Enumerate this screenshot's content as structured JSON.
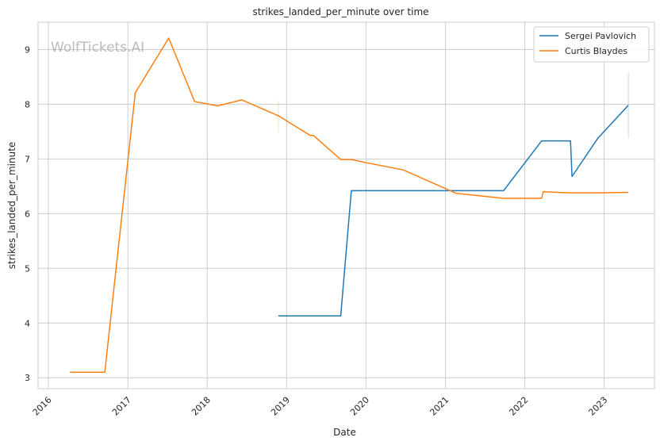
{
  "chart_data": {
    "type": "line",
    "title": "strikes_landed_per_minute over time",
    "xlabel": "Date",
    "ylabel": "strikes_landed_per_minute",
    "watermark": "WolfTickets.AI",
    "xlim": [
      "2015-11-15",
      "2023-08-20"
    ],
    "ylim": [
      2.8,
      9.5
    ],
    "x_ticks": [
      "2016-01-01",
      "2017-01-01",
      "2018-01-01",
      "2019-01-01",
      "2020-01-01",
      "2021-01-01",
      "2022-01-01",
      "2023-01-01"
    ],
    "x_tick_labels": [
      "2016",
      "2017",
      "2018",
      "2019",
      "2020",
      "2021",
      "2022",
      "2023"
    ],
    "y_ticks": [
      3,
      4,
      5,
      6,
      7,
      8,
      9
    ],
    "grid": true,
    "legend_position": "top-right",
    "series": [
      {
        "name": "Sergei Pavlovich",
        "color": "#1f77b4",
        "points": [
          [
            "2018-11-24",
            4.13
          ],
          [
            "2019-09-07",
            4.13
          ],
          [
            "2019-10-26",
            6.42
          ],
          [
            "2021-09-25",
            6.42
          ],
          [
            "2022-03-19",
            7.33
          ],
          [
            "2022-07-30",
            7.33
          ],
          [
            "2022-08-06",
            6.68
          ],
          [
            "2022-12-03",
            7.38
          ],
          [
            "2023-04-22",
            7.98
          ]
        ]
      },
      {
        "name": "Curtis Blaydes",
        "color": "#ff7f0e",
        "points": [
          [
            "2016-04-10",
            3.1
          ],
          [
            "2016-09-17",
            3.1
          ],
          [
            "2017-02-04",
            8.21
          ],
          [
            "2017-07-08",
            9.21
          ],
          [
            "2017-11-04",
            8.05
          ],
          [
            "2018-02-18",
            7.97
          ],
          [
            "2018-06-09",
            8.08
          ],
          [
            "2018-11-24",
            7.79
          ],
          [
            "2019-04-20",
            7.43
          ],
          [
            "2019-05-04",
            7.43
          ],
          [
            "2019-09-07",
            6.99
          ],
          [
            "2019-10-26",
            6.99
          ],
          [
            "2020-01-04",
            6.93
          ],
          [
            "2020-06-20",
            6.8
          ],
          [
            "2021-02-20",
            6.37
          ],
          [
            "2021-09-25",
            6.28
          ],
          [
            "2022-03-19",
            6.28
          ],
          [
            "2022-03-26",
            6.4
          ],
          [
            "2022-07-30",
            6.38
          ],
          [
            "2022-12-03",
            6.38
          ],
          [
            "2023-04-22",
            6.39
          ]
        ]
      }
    ]
  }
}
